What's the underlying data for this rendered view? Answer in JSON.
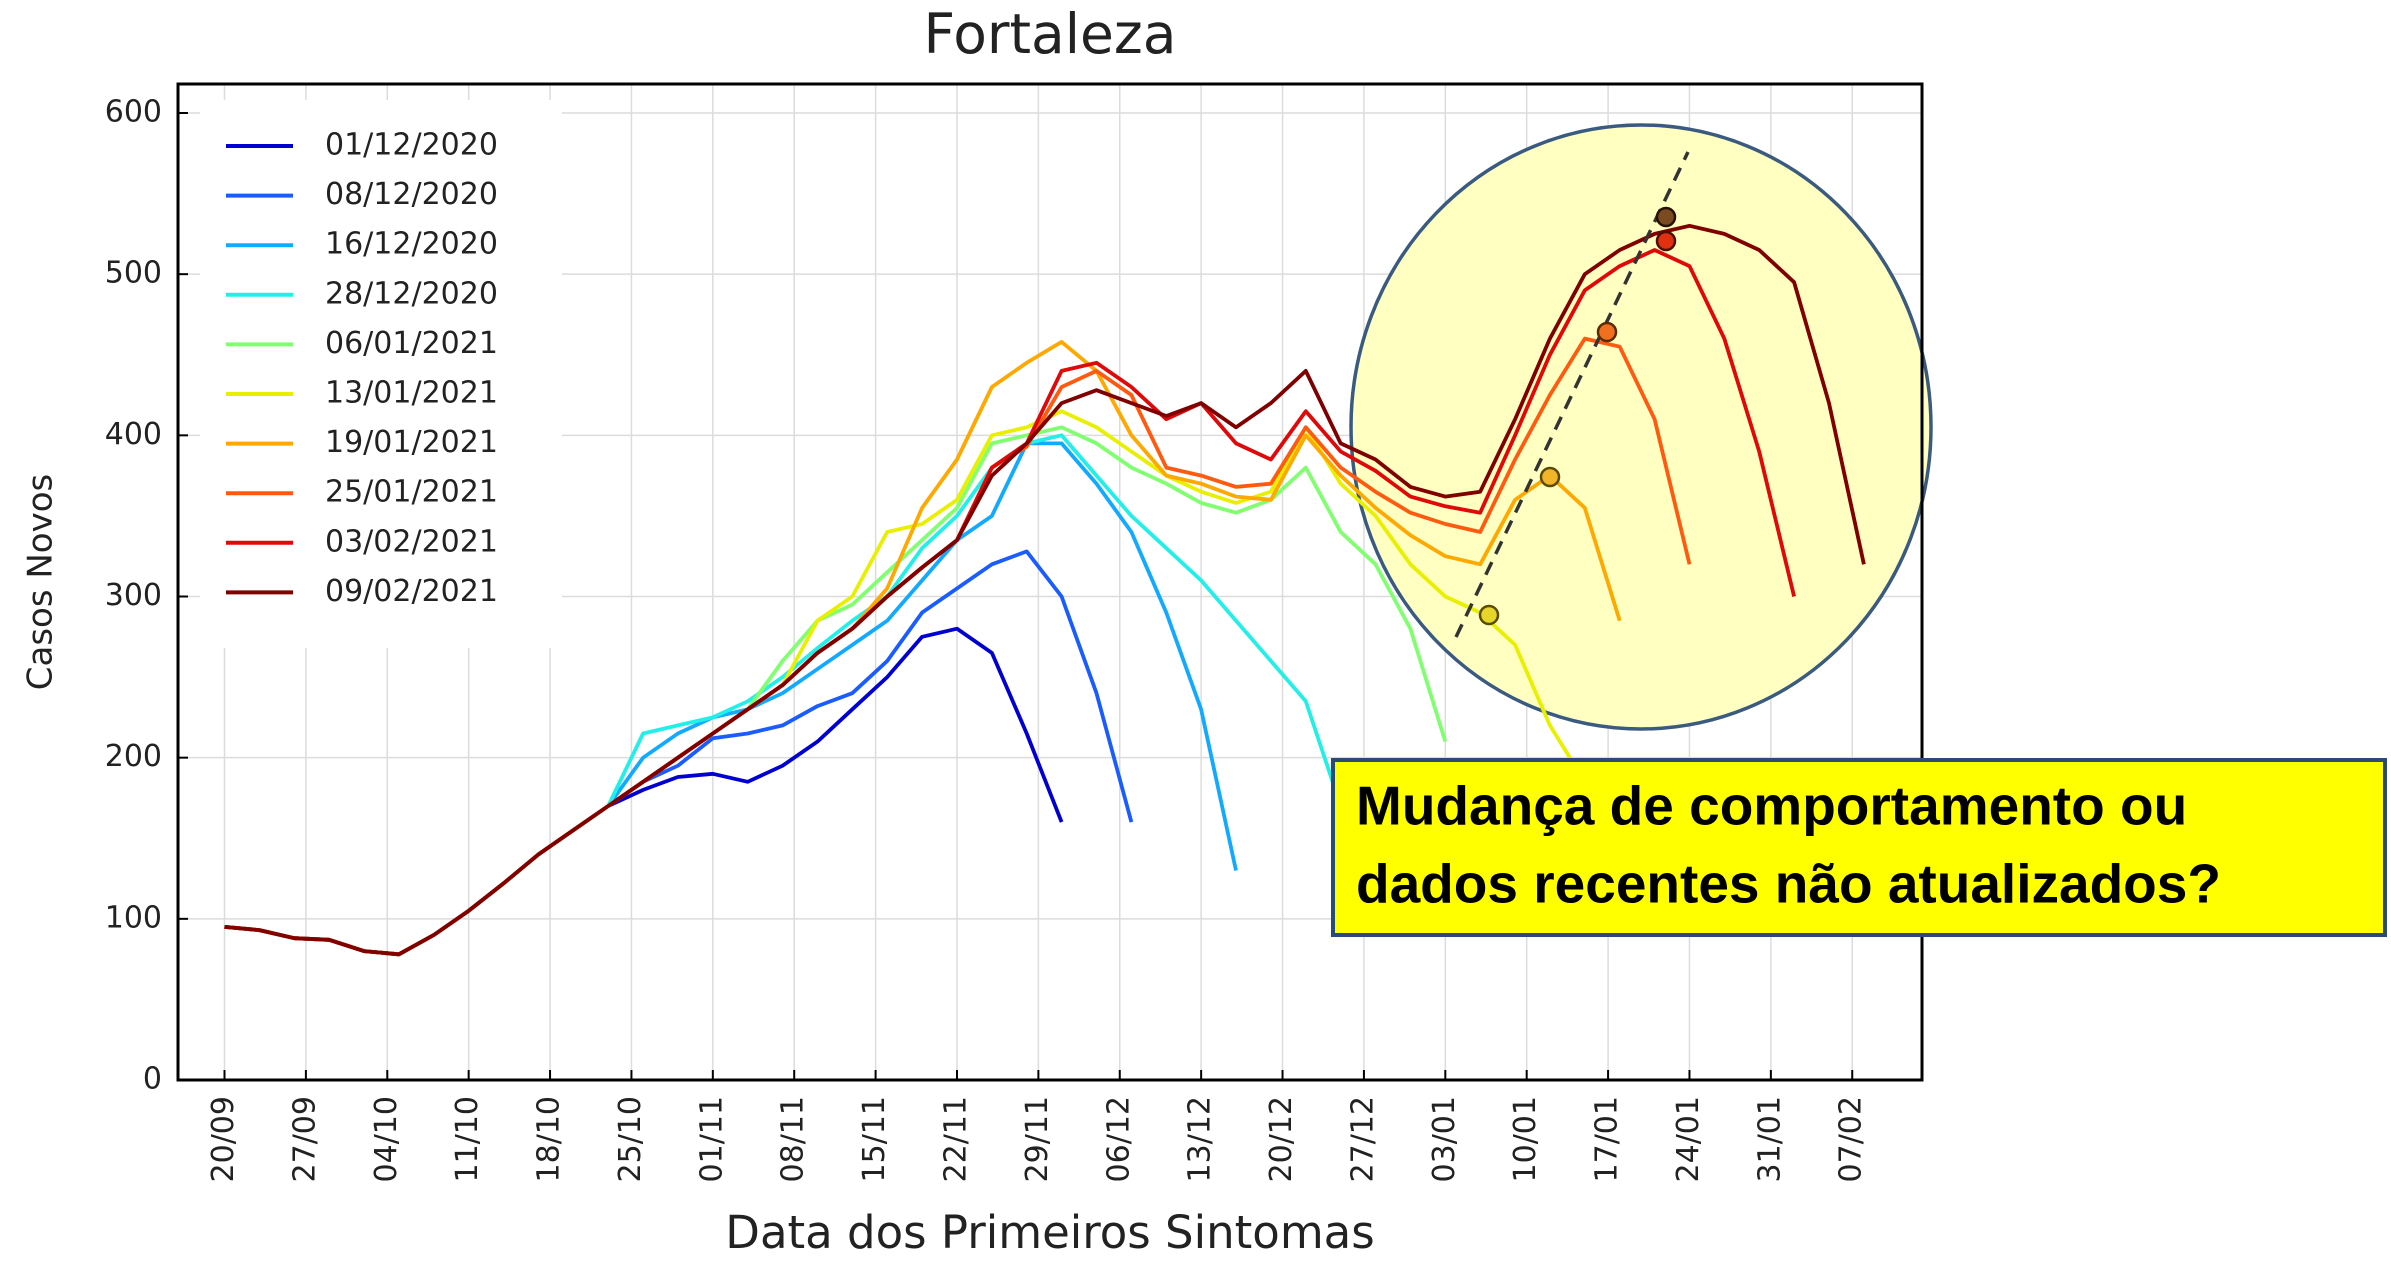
{
  "chart_data": {
    "type": "line",
    "title": "Fortaleza",
    "xlabel": "Data dos Primeiros Sintomas",
    "ylabel": "Casos Novos",
    "x": [
      "20/09",
      "23/09",
      "26/09",
      "29/09",
      "02/10",
      "05/10",
      "08/10",
      "11/10",
      "14/10",
      "17/10",
      "20/10",
      "23/10",
      "26/10",
      "29/10",
      "01/11",
      "04/11",
      "07/11",
      "10/11",
      "13/11",
      "16/11",
      "19/11",
      "22/11",
      "25/11",
      "28/11",
      "01/12",
      "04/12",
      "07/12",
      "10/12",
      "13/12",
      "16/12",
      "19/12",
      "22/12",
      "25/12",
      "28/12",
      "31/12",
      "03/01",
      "06/01",
      "09/01",
      "12/01",
      "15/01",
      "18/01",
      "21/01",
      "24/01",
      "27/01",
      "30/01",
      "02/02",
      "05/02",
      "08/02"
    ],
    "xlim": [
      "16/09",
      "13/02"
    ],
    "xticks": [
      "20/09",
      "27/09",
      "04/10",
      "11/10",
      "18/10",
      "25/10",
      "01/11",
      "08/11",
      "15/11",
      "22/11",
      "29/11",
      "06/12",
      "13/12",
      "20/12",
      "27/12",
      "03/01",
      "10/01",
      "17/01",
      "24/01",
      "31/01",
      "07/02"
    ],
    "ylim": [
      0,
      618
    ],
    "yticks": [
      0,
      100,
      200,
      300,
      400,
      500,
      600
    ],
    "grid": true,
    "legend": "upper left",
    "series": [
      {
        "name": "01/12/2020",
        "color": "#0000d0",
        "values": [
          95,
          93,
          88,
          87,
          80,
          78,
          90,
          105,
          122,
          140,
          155,
          170,
          180,
          188,
          190,
          185,
          195,
          210,
          230,
          250,
          275,
          280,
          265,
          215,
          160,
          null,
          null,
          null,
          null,
          null,
          null,
          null,
          null,
          null,
          null,
          null,
          null,
          null,
          null,
          null,
          null,
          null,
          null,
          null,
          null,
          null,
          null,
          null
        ]
      },
      {
        "name": "08/12/2020",
        "color": "#1a5cff",
        "values": [
          95,
          93,
          88,
          87,
          80,
          78,
          90,
          105,
          122,
          140,
          155,
          170,
          185,
          195,
          212,
          215,
          220,
          232,
          240,
          260,
          290,
          305,
          320,
          328,
          300,
          240,
          160,
          null,
          null,
          null,
          null,
          null,
          null,
          null,
          null,
          null,
          null,
          null,
          null,
          null,
          null,
          null,
          null,
          null,
          null,
          null,
          null,
          null
        ]
      },
      {
        "name": "16/12/2020",
        "color": "#12aaff",
        "values": [
          95,
          93,
          88,
          87,
          80,
          78,
          90,
          105,
          122,
          140,
          155,
          170,
          200,
          215,
          225,
          230,
          240,
          255,
          270,
          285,
          310,
          335,
          350,
          395,
          395,
          370,
          340,
          290,
          230,
          130,
          null,
          null,
          null,
          null,
          null,
          null,
          null,
          null,
          null,
          null,
          null,
          null,
          null,
          null,
          null,
          null,
          null,
          null
        ]
      },
      {
        "name": "28/12/2020",
        "color": "#22f0e8",
        "values": [
          95,
          93,
          88,
          87,
          80,
          78,
          90,
          105,
          122,
          140,
          155,
          170,
          215,
          220,
          225,
          235,
          250,
          268,
          285,
          300,
          330,
          350,
          380,
          395,
          400,
          375,
          350,
          330,
          310,
          285,
          260,
          235,
          170,
          null,
          null,
          null,
          null,
          null,
          null,
          null,
          null,
          null,
          null,
          null,
          null,
          null,
          null,
          null
        ]
      },
      {
        "name": "06/01/2021",
        "color": "#80ff70",
        "values": [
          95,
          93,
          88,
          87,
          80,
          78,
          90,
          105,
          122,
          140,
          155,
          170,
          185,
          200,
          215,
          230,
          260,
          285,
          295,
          315,
          335,
          355,
          395,
          400,
          405,
          395,
          380,
          370,
          358,
          352,
          360,
          380,
          340,
          320,
          280,
          210,
          null,
          null,
          null,
          null,
          null,
          null,
          null,
          null,
          null,
          null,
          null,
          null
        ]
      },
      {
        "name": "13/01/2021",
        "color": "#e8f000",
        "values": [
          95,
          93,
          88,
          87,
          80,
          78,
          90,
          105,
          122,
          140,
          155,
          170,
          185,
          200,
          215,
          230,
          245,
          285,
          300,
          340,
          345,
          360,
          400,
          405,
          415,
          405,
          390,
          375,
          365,
          358,
          365,
          405,
          370,
          350,
          320,
          300,
          290,
          270,
          220,
          185,
          null,
          null,
          null,
          null,
          null,
          null,
          null,
          null
        ]
      },
      {
        "name": "19/01/2021",
        "color": "#ffa800",
        "values": [
          95,
          93,
          88,
          87,
          80,
          78,
          90,
          105,
          122,
          140,
          155,
          170,
          185,
          200,
          215,
          230,
          245,
          265,
          280,
          305,
          355,
          385,
          430,
          445,
          458,
          440,
          400,
          375,
          370,
          362,
          360,
          400,
          375,
          355,
          338,
          325,
          320,
          360,
          375,
          355,
          285,
          null,
          null,
          null,
          null,
          null,
          null,
          null
        ]
      },
      {
        "name": "25/01/2021",
        "color": "#ff5a10",
        "values": [
          95,
          93,
          88,
          87,
          80,
          78,
          90,
          105,
          122,
          140,
          155,
          170,
          185,
          200,
          215,
          230,
          245,
          265,
          280,
          300,
          318,
          335,
          380,
          393,
          430,
          440,
          425,
          380,
          375,
          368,
          370,
          405,
          380,
          365,
          352,
          345,
          340,
          385,
          425,
          460,
          455,
          410,
          320,
          null,
          null,
          null,
          null,
          null
        ]
      },
      {
        "name": "03/02/2021",
        "color": "#e00808",
        "values": [
          95,
          93,
          88,
          87,
          80,
          78,
          90,
          105,
          122,
          140,
          155,
          170,
          185,
          200,
          215,
          230,
          245,
          265,
          280,
          300,
          318,
          335,
          380,
          395,
          440,
          445,
          430,
          410,
          420,
          395,
          385,
          415,
          390,
          378,
          362,
          356,
          352,
          400,
          450,
          490,
          505,
          515,
          505,
          460,
          390,
          300,
          null,
          null
        ]
      },
      {
        "name": "09/02/2021",
        "color": "#800000",
        "values": [
          95,
          93,
          88,
          87,
          80,
          78,
          90,
          105,
          122,
          140,
          155,
          170,
          185,
          200,
          215,
          230,
          245,
          265,
          280,
          300,
          318,
          335,
          375,
          395,
          420,
          428,
          420,
          412,
          420,
          405,
          420,
          440,
          395,
          385,
          368,
          362,
          365,
          410,
          460,
          500,
          515,
          525,
          530,
          525,
          515,
          495,
          420,
          320
        ]
      }
    ],
    "annotation": [
      "Mudança de comportamento ou",
      "dados recentes não atualizados?"
    ]
  }
}
